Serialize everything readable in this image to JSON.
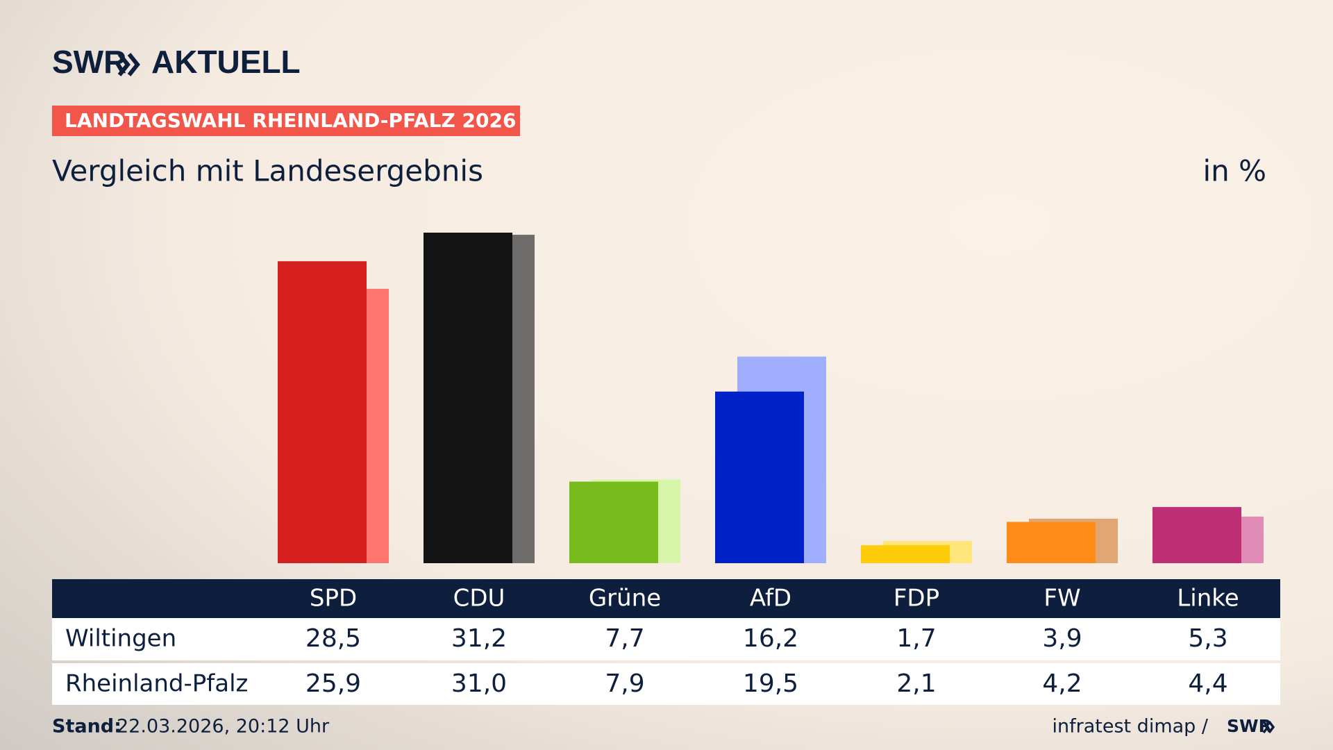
{
  "header": {
    "brand": "SWR",
    "brand_suffix": "AKTUELL",
    "kicker": "LANDTAGSWAHL RHEINLAND-PFALZ 2026"
  },
  "chart_data": {
    "type": "bar",
    "title": "Vergleich mit Landesergebnis",
    "unit": "in %",
    "categories": [
      "SPD",
      "CDU",
      "Grüne",
      "AfD",
      "FDP",
      "FW",
      "Linke"
    ],
    "series": [
      {
        "name": "Wiltingen",
        "colors": [
          "#d62020",
          "#141414",
          "#78bb1c",
          "#0022c8",
          "#ffcc0a",
          "#ff8c19",
          "#bd2e74"
        ],
        "values": [
          28.5,
          31.2,
          7.7,
          16.2,
          1.7,
          3.9,
          5.3
        ],
        "value_labels": [
          "28,5",
          "31,2",
          "7,7",
          "16,2",
          "1,7",
          "3,9",
          "5,3"
        ]
      },
      {
        "name": "Rheinland-Pfalz",
        "colors": [
          "#ff7570",
          "#6f6d6c",
          "#d7f5a8",
          "#a0aeff",
          "#ffe57a",
          "#e0a673",
          "#e08cb6"
        ],
        "values": [
          25.9,
          31.0,
          7.9,
          19.5,
          2.1,
          4.2,
          4.4
        ],
        "value_labels": [
          "25,9",
          "31,0",
          "7,9",
          "19,5",
          "2,1",
          "4,2",
          "4,4"
        ]
      }
    ]
  },
  "footer": {
    "stand_label": "Stand:",
    "stand_value": "22.03.2026, 20:12 Uhr",
    "source": "infratest dimap /",
    "source_brand": "SWR"
  }
}
